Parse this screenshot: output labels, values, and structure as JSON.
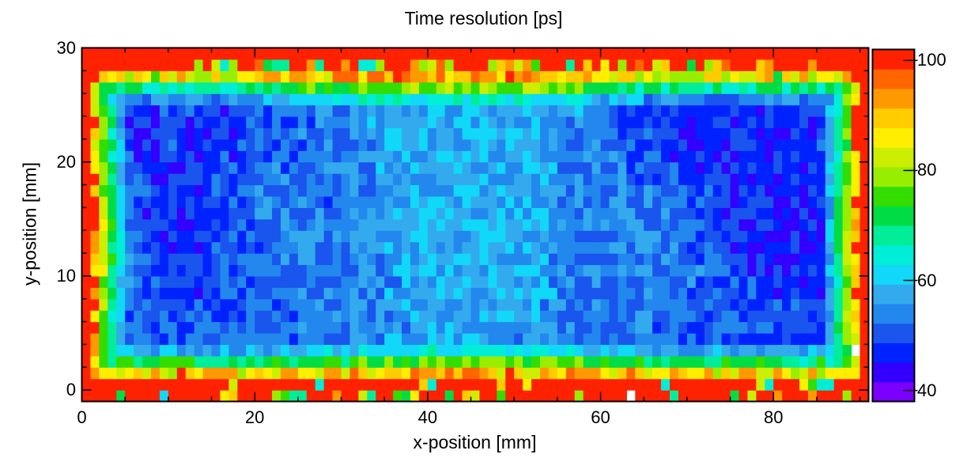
{
  "chart_data": {
    "type": "heatmap",
    "title": "Time resolution [ps]",
    "xlabel": "x-position [mm]",
    "ylabel": "y-position [mm]",
    "xlim": [
      0,
      91
    ],
    "ylim": [
      -1,
      30
    ],
    "zlim": [
      38,
      102
    ],
    "xticks": [
      0,
      20,
      40,
      60,
      80
    ],
    "yticks": [
      0,
      10,
      20,
      30
    ],
    "colorbar_ticks": [
      40,
      60,
      80,
      100
    ],
    "x_tick_labels": [
      "0",
      "20",
      "40",
      "60",
      "80"
    ],
    "y_tick_labels": [
      "0",
      "10",
      "20",
      "30"
    ],
    "colorbar_tick_labels": [
      "40",
      "60",
      "80",
      "100"
    ],
    "grid": false,
    "colorscale": [
      "#7a00ff",
      "#3300ff",
      "#0022ff",
      "#1a55ee",
      "#2288ee",
      "#33aaee",
      "#11d8f8",
      "#00eed8",
      "#00ee99",
      "#00dd44",
      "#33dd00",
      "#99ee00",
      "#ccee00",
      "#ffee00",
      "#ffcc00",
      "#ff9900",
      "#ff6600",
      "#ff2200"
    ],
    "bin_width_mm": 1,
    "bin_height_mm": 1,
    "active_region": {
      "x": [
        1,
        90
      ],
      "y": [
        1,
        28
      ]
    },
    "edge_value": 100,
    "empty_bins": [
      [
        63.5,
        -0.5
      ],
      [
        89.5,
        3.5
      ]
    ],
    "z_description_profile": [
      {
        "x": 3,
        "y": 14,
        "z": 55
      },
      {
        "x": 10,
        "y": 14,
        "z": 47
      },
      {
        "x": 10,
        "y": 22,
        "z": 48
      },
      {
        "x": 25,
        "y": 14,
        "z": 53
      },
      {
        "x": 45,
        "y": 14,
        "z": 58
      },
      {
        "x": 45,
        "y": 24,
        "z": 58
      },
      {
        "x": 65,
        "y": 14,
        "z": 53
      },
      {
        "x": 75,
        "y": 22,
        "z": 47
      },
      {
        "x": 85,
        "y": 14,
        "z": 44
      },
      {
        "x": 88,
        "y": 14,
        "z": 55
      }
    ]
  }
}
